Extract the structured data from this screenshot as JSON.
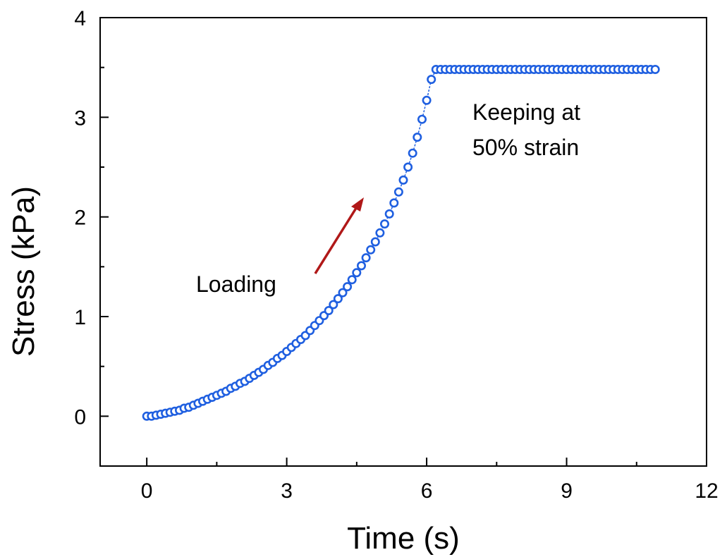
{
  "chart_data": {
    "type": "scatter",
    "title": "",
    "xlabel": "Time (s)",
    "ylabel": "Stress (kPa)",
    "xlim": [
      -1.0,
      12.0
    ],
    "ylim": [
      -0.5,
      4.0
    ],
    "xticks": [
      0,
      3,
      6,
      9,
      12
    ],
    "yticks": [
      0,
      1,
      2,
      3,
      4
    ],
    "grid": false,
    "marker": "open-circle",
    "connected": true,
    "series_color": "#1f5fe0",
    "series": [
      {
        "values_x": [
          0.0,
          0.1,
          0.2,
          0.3,
          0.4,
          0.5,
          0.6,
          0.7,
          0.8,
          0.9,
          1.0,
          1.1,
          1.2,
          1.3,
          1.4,
          1.5,
          1.6,
          1.7,
          1.8,
          1.9,
          2.0,
          2.1,
          2.2,
          2.3,
          2.4,
          2.5,
          2.6,
          2.7,
          2.8,
          2.9,
          3.0,
          3.1,
          3.2,
          3.3,
          3.4,
          3.5,
          3.6,
          3.7,
          3.8,
          3.9,
          4.0,
          4.1,
          4.2,
          4.3,
          4.4,
          4.5,
          4.6,
          4.7,
          4.8,
          4.9,
          5.0,
          5.1,
          5.2,
          5.3,
          5.4,
          5.5,
          5.6,
          5.7,
          5.8,
          5.9,
          6.0,
          6.1,
          6.2,
          6.3,
          6.4,
          6.5,
          6.6,
          6.7,
          6.8,
          6.9,
          7.0,
          7.1,
          7.2,
          7.3,
          7.4,
          7.5,
          7.6,
          7.7,
          7.8,
          7.9,
          8.0,
          8.1,
          8.2,
          8.3,
          8.4,
          8.5,
          8.6,
          8.7,
          8.8,
          8.9,
          9.0,
          9.1,
          9.2,
          9.3,
          9.4,
          9.5,
          9.6,
          9.7,
          9.8,
          9.9,
          10.0,
          10.1,
          10.2,
          10.3,
          10.4,
          10.5,
          10.6,
          10.7,
          10.8,
          10.9
        ],
        "values_y": [
          0.0,
          0.0,
          0.01,
          0.02,
          0.03,
          0.04,
          0.05,
          0.06,
          0.08,
          0.09,
          0.11,
          0.13,
          0.15,
          0.17,
          0.19,
          0.21,
          0.23,
          0.25,
          0.28,
          0.3,
          0.33,
          0.35,
          0.38,
          0.41,
          0.44,
          0.47,
          0.51,
          0.54,
          0.58,
          0.61,
          0.65,
          0.69,
          0.73,
          0.77,
          0.81,
          0.86,
          0.91,
          0.96,
          1.01,
          1.06,
          1.12,
          1.18,
          1.24,
          1.3,
          1.37,
          1.44,
          1.51,
          1.59,
          1.67,
          1.75,
          1.84,
          1.93,
          2.03,
          2.14,
          2.25,
          2.37,
          2.5,
          2.64,
          2.8,
          2.98,
          3.17,
          3.38,
          3.48,
          3.48,
          3.48,
          3.48,
          3.48,
          3.48,
          3.48,
          3.48,
          3.48,
          3.48,
          3.48,
          3.48,
          3.48,
          3.48,
          3.48,
          3.48,
          3.48,
          3.48,
          3.48,
          3.48,
          3.48,
          3.48,
          3.48,
          3.48,
          3.48,
          3.48,
          3.48,
          3.48,
          3.48,
          3.48,
          3.48,
          3.48,
          3.48,
          3.48,
          3.48,
          3.48,
          3.48,
          3.48,
          3.48,
          3.48,
          3.48,
          3.48,
          3.48,
          3.48,
          3.48,
          3.48,
          3.48,
          3.48
        ]
      }
    ],
    "annotations": {
      "loading_label": "Loading",
      "keeping_line1": "Keeping at",
      "keeping_line2": "50% strain",
      "arrow_color": "#b01818"
    }
  }
}
